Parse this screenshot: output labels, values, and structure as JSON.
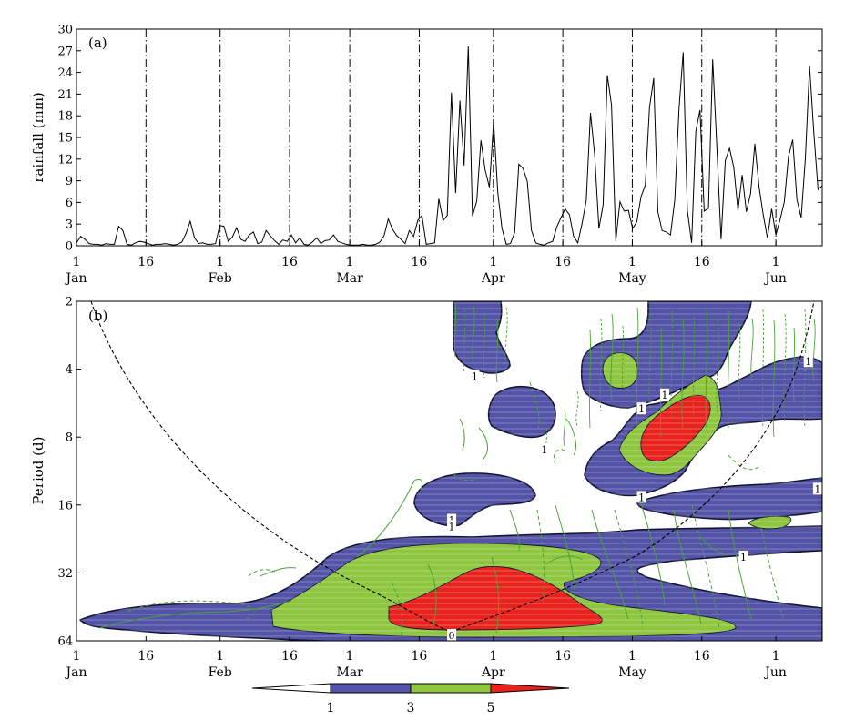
{
  "chart_data": [
    {
      "type": "line",
      "panel_label": "(a)",
      "xlabel": "",
      "ylabel": "rainfall  (mm)",
      "ylim": [
        0,
        30
      ],
      "yticks": [
        0,
        3,
        6,
        9,
        12,
        15,
        18,
        21,
        24,
        27,
        30
      ],
      "x_ticks": [
        {
          "day": 0,
          "top": "1",
          "bottom": "Jan"
        },
        {
          "day": 15,
          "top": "16",
          "bottom": ""
        },
        {
          "day": 31,
          "top": "1",
          "bottom": "Feb"
        },
        {
          "day": 46,
          "top": "16",
          "bottom": ""
        },
        {
          "day": 59,
          "top": "1",
          "bottom": "Mar"
        },
        {
          "day": 74,
          "top": "16",
          "bottom": ""
        },
        {
          "day": 90,
          "top": "1",
          "bottom": "Apr"
        },
        {
          "day": 105,
          "top": "16",
          "bottom": ""
        },
        {
          "day": 120,
          "top": "1",
          "bottom": "May"
        },
        {
          "day": 135,
          "top": "16",
          "bottom": ""
        },
        {
          "day": 151,
          "top": "1",
          "bottom": "Jun"
        }
      ],
      "xlim": [
        0,
        161
      ],
      "vertical_dashdot_lines_at": [
        15,
        31,
        46,
        59,
        74,
        90,
        105,
        120,
        135,
        151
      ],
      "series": [
        {
          "values": [
            0.4,
            1.3,
            0.9,
            0.3,
            0.2,
            0.2,
            0.1,
            0.3,
            0.2,
            0.2,
            2.7,
            2.1,
            0.2,
            0.1,
            0.4,
            0.6,
            0.5,
            0.3,
            0.1,
            0.2,
            0.2,
            0.3,
            0.2,
            0.1,
            0.2,
            0.5,
            1.7,
            3.4,
            1.1,
            0.3,
            0.4,
            0.2,
            0.2,
            0.3,
            2.8,
            2.7,
            0.6,
            1.2,
            2.5,
            0.9,
            0.6,
            1.5,
            1.9,
            0.3,
            0.5,
            2.1,
            1.4,
            0.7,
            0.2,
            0.8,
            0.6,
            1.5,
            0.4,
            1.1,
            0.2,
            0.1,
            0.5,
            1.1,
            0.3,
            0.7,
            0.8,
            1.5,
            0.6,
            0.4,
            0.2,
            0.1,
            0.1,
            0.1,
            0.2,
            0.1,
            0.1,
            0.2,
            0.5,
            1.4,
            3.7,
            2.3,
            1.4,
            0.9,
            0.3,
            2.1,
            1.3,
            3.5,
            4.2,
            0.2,
            0.3,
            0.4,
            6.5,
            3.5,
            4.2,
            21.2,
            7.3,
            20.1,
            11.1,
            27.6,
            4.1,
            6.2,
            14.6,
            10.5,
            8.1,
            17.2,
            7.4,
            2.4,
            0.2,
            0.3,
            1.8,
            11.3,
            10.7,
            8.9,
            2.1,
            0.4,
            0.2,
            0.1,
            0.4,
            0.6,
            2.6,
            3.9,
            5.1,
            4.3,
            1.3,
            0.4,
            3.1,
            6.3,
            18.4,
            12.6,
            2.4,
            5.7,
            23.6,
            19.5,
            0.7,
            6.1,
            4.8,
            4.9,
            2.4,
            3.3,
            6.8,
            8.4,
            19.1,
            23.2,
            4.7,
            2.1,
            1.9,
            1.5,
            6.4,
            18.9,
            26.8,
            4.9,
            0.4,
            15.9,
            18.8,
            4.8,
            5.2,
            25.8,
            13.6,
            0.9,
            11.8,
            13.5,
            10.9,
            4.9,
            9.8,
            4.7,
            7.2,
            14.1,
            8.2,
            4.3,
            1.1,
            5.1,
            1.5,
            3.6,
            6.1,
            12.4,
            14.7,
            6.4,
            3.9,
            12.1,
            24.9,
            15.8,
            7.8,
            8.3
          ]
        }
      ]
    },
    {
      "type": "heatmap",
      "panel_label": "(b)",
      "xlabel": "",
      "ylabel": "Period  (d)",
      "y_scale": "log2",
      "ylim": [
        2,
        64
      ],
      "yticks": [
        2,
        4,
        8,
        16,
        32,
        64
      ],
      "x_ticks": [
        {
          "day": 0,
          "top": "1",
          "bottom": "Jan"
        },
        {
          "day": 15,
          "top": "16",
          "bottom": ""
        },
        {
          "day": 31,
          "top": "1",
          "bottom": "Feb"
        },
        {
          "day": 46,
          "top": "16",
          "bottom": ""
        },
        {
          "day": 59,
          "top": "1",
          "bottom": "Mar"
        },
        {
          "day": 74,
          "top": "16",
          "bottom": ""
        },
        {
          "day": 90,
          "top": "1",
          "bottom": "Apr"
        },
        {
          "day": 105,
          "top": "16",
          "bottom": ""
        },
        {
          "day": 120,
          "top": "1",
          "bottom": "May"
        },
        {
          "day": 135,
          "top": "16",
          "bottom": ""
        },
        {
          "day": 151,
          "top": "1",
          "bottom": "Jun"
        }
      ],
      "xlim": [
        0,
        161
      ],
      "colorbar": {
        "ticks": [
          "1",
          "3",
          "5"
        ],
        "colors": [
          "#ffffff",
          "#5353a8",
          "#8ec63f",
          "#e8231d"
        ]
      },
      "contour_labels": [
        {
          "text": "1",
          "day": 86,
          "period": 4.3
        },
        {
          "text": "1",
          "day": 101,
          "period": 9.1
        },
        {
          "text": "1",
          "day": 122,
          "period": 6.0
        },
        {
          "text": "1",
          "day": 127,
          "period": 5.2
        },
        {
          "text": "1",
          "day": 158,
          "period": 3.7
        },
        {
          "text": "1",
          "day": 122,
          "period": 14.8
        },
        {
          "text": "1",
          "day": 160,
          "period": 13.6
        },
        {
          "text": "1",
          "day": 81,
          "period": 18.7
        },
        {
          "text": "1",
          "day": 81,
          "period": 19.9
        },
        {
          "text": "1",
          "day": 144,
          "period": 27.2
        },
        {
          "text": "0",
          "day": 81,
          "period": 60.5
        }
      ]
    }
  ]
}
